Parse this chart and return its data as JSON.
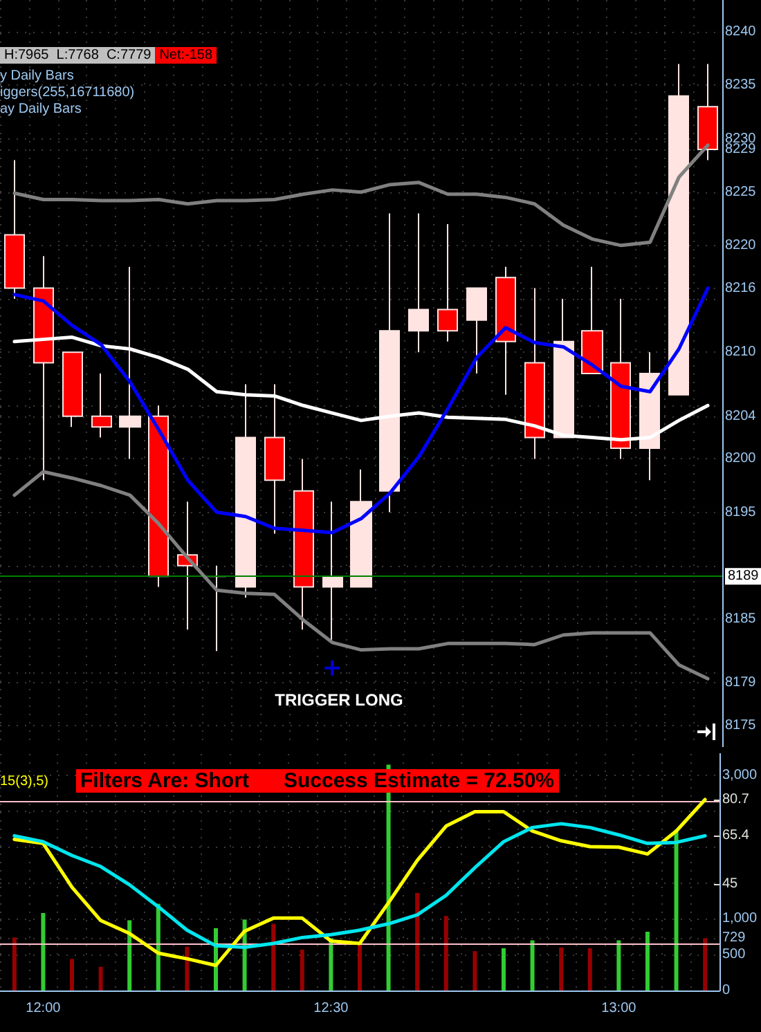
{
  "chart_data": [
    {
      "type": "candlestick",
      "categories": [
        null,
        null,
        null,
        null,
        null,
        null,
        null,
        null,
        null,
        null,
        null,
        null,
        null,
        null,
        null,
        null,
        null,
        null,
        null,
        null,
        null,
        null,
        null,
        null,
        null
      ],
      "ohlc": [
        [
          8221,
          8228,
          8215,
          8216
        ],
        [
          8216,
          8219,
          8198,
          8209
        ],
        [
          8210,
          8210,
          8203,
          8204
        ],
        [
          8204,
          8208,
          8202,
          8203
        ],
        [
          8203,
          8218,
          8200,
          8204
        ],
        [
          8204,
          8205,
          8188,
          8189
        ],
        [
          8191,
          8196,
          8184,
          8190
        ],
        [
          8189,
          8190,
          8182,
          8189
        ],
        [
          8188,
          8207,
          8187,
          8202
        ],
        [
          8202,
          8207,
          8193,
          8198
        ],
        [
          8197,
          8200,
          8184,
          8188
        ],
        [
          8188,
          8196,
          8183,
          8189
        ],
        [
          8188,
          8199,
          8188,
          8196
        ],
        [
          8197,
          8223,
          8195,
          8212
        ],
        [
          8212,
          8223,
          8210,
          8214
        ],
        [
          8214,
          8222,
          8211,
          8212
        ],
        [
          8213,
          8216,
          8208,
          8216
        ],
        [
          8217,
          8218,
          8206,
          8211
        ],
        [
          8209,
          8216,
          8200,
          8202
        ],
        [
          8202,
          8215,
          8202,
          8211
        ],
        [
          8212,
          8218,
          8208,
          8208
        ],
        [
          8209,
          8215,
          8200,
          8201
        ],
        [
          8201,
          8210,
          8198,
          8208
        ],
        [
          8206,
          8237,
          8206,
          8234
        ],
        [
          8233,
          8237,
          8228,
          8229
        ]
      ],
      "colors": [
        "#ff0000",
        "#ff0000",
        "#ff0000",
        "#ff0000",
        "#ffe4e1",
        "#ff0000",
        "#ff0000",
        "#ffe4e1",
        "#ffe4e1",
        "#ff0000",
        "#ff0000",
        "#ffe4e1",
        "#ffe4e1",
        "#ffe4e1",
        "#ffe4e1",
        "#ff0000",
        "#ffe4e1",
        "#ff0000",
        "#ff0000",
        "#ffe4e1",
        "#ff0000",
        "#ff0000",
        "#ffe4e1",
        "#ffe4e1",
        "#ff0000"
      ],
      "series": [
        {
          "type": "line",
          "color": "#808080",
          "values": [
            8224.9,
            8224.3,
            8224.3,
            8224.2,
            8224.2,
            8224.3,
            8223.9,
            8224.2,
            8224.2,
            8224.3,
            8224.8,
            8225.2,
            8225,
            8225.7,
            8225.9,
            8224.8,
            8224.8,
            8224.5,
            8223.9,
            8221.9,
            8220.6,
            8220,
            8220.3,
            8226.4,
            8229.4
          ]
        },
        {
          "type": "line",
          "color": "#ffffff",
          "values": [
            8211,
            8211.2,
            8211.4,
            8210.6,
            8210.3,
            8209.5,
            8208.4,
            8206.3,
            8206,
            8205.9,
            8205,
            8204.3,
            8203.6,
            8204,
            8204.3,
            8203.9,
            8203.8,
            8203.7,
            8203.1,
            8202.2,
            8202,
            8201.8,
            8202,
            8203.6,
            8205
          ]
        },
        {
          "type": "line",
          "color": "#0000ff",
          "values": [
            8215.4,
            8214.8,
            8212.5,
            8210.7,
            8207.2,
            8202.7,
            8198,
            8195,
            8194.6,
            8193.5,
            8193.3,
            8193.1,
            8194.4,
            8196.8,
            8200.2,
            8204.7,
            8209.5,
            8212.3,
            8210.9,
            8210.5,
            8208.8,
            8206.8,
            8206.3,
            8210.3,
            8216
          ]
        },
        {
          "type": "line",
          "color": "#808080",
          "values": [
            8196.6,
            8198.8,
            8198.2,
            8197.5,
            8196.6,
            8193.9,
            8190.7,
            8187.7,
            8187.4,
            8187.3,
            8184.9,
            8182.8,
            8182.1,
            8182.2,
            8182.2,
            8182.7,
            8182.7,
            8182.7,
            8182.6,
            8183.5,
            8183.7,
            8183.7,
            8183.7,
            8180.7,
            8179.4
          ]
        },
        {
          "type": "scatter",
          "color": "#0000ff",
          "marker": "cross",
          "values": [
            null,
            null,
            null,
            null,
            null,
            null,
            null,
            null,
            null,
            null,
            null,
            8180.4,
            null,
            null,
            null,
            null,
            null,
            null,
            null,
            null,
            null,
            null,
            null,
            null,
            null
          ]
        }
      ],
      "ylim": [
        8173,
        8243
      ],
      "yticks": [
        8175,
        {
          "value": 8179,
          "label": "8179"
        },
        {
          "value": 8180,
          "label": null
        },
        8185,
        {
          "value": 8190,
          "label": null
        },
        8195,
        8200,
        {
          "value": 8204,
          "label": "8204"
        },
        {
          "value": 8205,
          "label": null
        },
        8210,
        {
          "value": 8215,
          "label": null
        },
        {
          "value": 8216,
          "label": "8216"
        },
        8220,
        8225,
        {
          "value": 8229,
          "label": "8229"
        },
        {
          "value": 8230,
          "label": "8230"
        },
        8235,
        8240
      ],
      "grid": true,
      "tick_labels": "y",
      "ref_lines": [
        {
          "axis": "y",
          "value": 8189,
          "label": "8189",
          "color": "#008000"
        }
      ],
      "annotations": [
        "H:7965  L:7768  C:7779",
        "Net:-158",
        "y Daily Bars",
        "iggers(255,16711680)",
        "ay Daily Bars",
        "TRIGGER LONG"
      ]
    },
    {
      "type": "bar",
      "categories": [
        null,
        "12:00",
        null,
        null,
        null,
        null,
        null,
        null,
        null,
        null,
        null,
        "12:30",
        null,
        null,
        null,
        null,
        null,
        null,
        null,
        null,
        null,
        "13:00",
        null,
        null,
        null
      ],
      "series": [
        {
          "type": "bar",
          "colors": [
            "#990000",
            "#33cc33",
            "#990000",
            "#990000",
            "#33cc33",
            "#33cc33",
            "#990000",
            "#33cc33",
            "#33cc33",
            "#990000",
            "#990000",
            "#33cc33",
            "#990000",
            "#33cc33",
            "#990000",
            "#990000",
            "#990000",
            "#33cc33",
            "#33cc33",
            "#990000",
            "#990000",
            "#33cc33",
            "#33cc33",
            "#33cc33",
            "#990000"
          ],
          "values": [
            740,
            1080,
            440,
            330,
            980,
            1210,
            610,
            870,
            990,
            930,
            570,
            730,
            650,
            3150,
            1360,
            1040,
            550,
            590,
            700,
            600,
            590,
            700,
            820,
            2240,
            729
          ]
        },
        {
          "type": "line",
          "axis": "y2",
          "color": "#ffff00",
          "values": [
            63.9,
            62.2,
            43.7,
            29.6,
            24.1,
            15.8,
            13.4,
            10.6,
            25.1,
            30.6,
            30.6,
            20.9,
            19.9,
            37.1,
            55,
            69.5,
            75.6,
            75.6,
            67.4,
            63.3,
            60.8,
            60.6,
            57.7,
            67.4,
            80.7
          ]
        },
        {
          "type": "line",
          "axis": "y2",
          "color": "#00e5ee",
          "values": [
            65.4,
            62.9,
            57.1,
            52.4,
            44.7,
            35.4,
            25.5,
            18.9,
            18.3,
            19.9,
            22.4,
            23.6,
            25.5,
            28.2,
            32,
            40.2,
            51.9,
            62.9,
            68.9,
            70.5,
            68.9,
            65.8,
            62.2,
            62.6,
            65.4
          ]
        }
      ],
      "ylim": [
        0,
        3300
      ],
      "yticks": [
        0,
        500,
        {
          "value": 729,
          "label": "729"
        },
        {
          "value": 1000,
          "label": "1,000"
        },
        {
          "value": 1500,
          "label": null
        },
        {
          "value": 2000,
          "label": null
        },
        {
          "value": 2500,
          "label": null
        },
        {
          "value": 3000,
          "label": "3,000"
        }
      ],
      "y2lim": [
        0,
        100
      ],
      "y2ticks": [
        {
          "value": 80.7,
          "label": "80.7"
        },
        {
          "value": 65.4,
          "label": "65.4"
        },
        {
          "value": 45,
          "label": "45"
        }
      ],
      "grid": true,
      "ref_lines": [
        {
          "axis": "y2",
          "value": 80,
          "color": "#ffc0cb"
        },
        {
          "axis": "y2",
          "value": 20,
          "color": "#ffc0cb"
        }
      ],
      "annotations": [
        "15(3),5)",
        "Filters Are: Short      Success Estimate = 72.50%"
      ]
    }
  ]
}
